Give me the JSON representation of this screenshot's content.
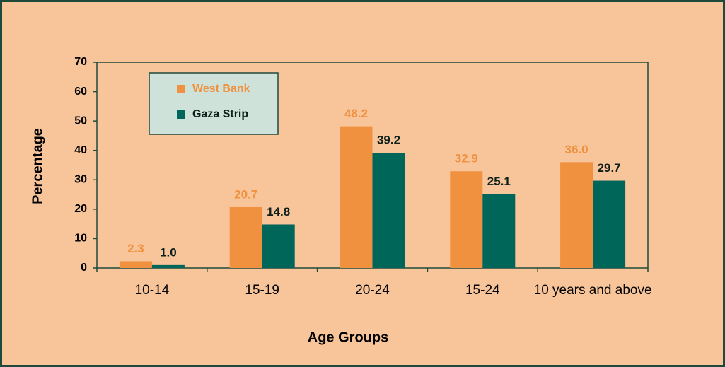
{
  "chart_data": {
    "type": "bar",
    "x_label": "Age Groups",
    "y_label": "Percentage",
    "categories": [
      "10-14",
      "15-19",
      "20-24",
      "15-24",
      "10 years and above"
    ],
    "series": [
      {
        "name": "West Bank",
        "color": "#f0913f",
        "values": [
          2.3,
          20.7,
          48.2,
          32.9,
          36.0
        ],
        "value_labels": [
          "2.3",
          "20.7",
          "48.2",
          "32.9",
          "36.0"
        ]
      },
      {
        "name": "Gaza Strip",
        "color": "#00665a",
        "values": [
          1.0,
          14.8,
          39.2,
          25.1,
          29.7
        ],
        "value_labels": [
          "1.0",
          "14.8",
          "39.2",
          "25.1",
          "29.7"
        ]
      }
    ],
    "ylim": [
      0,
      70
    ],
    "yticks": [
      0,
      10,
      20,
      30,
      40,
      50,
      60,
      70
    ],
    "legend": "upper left"
  }
}
